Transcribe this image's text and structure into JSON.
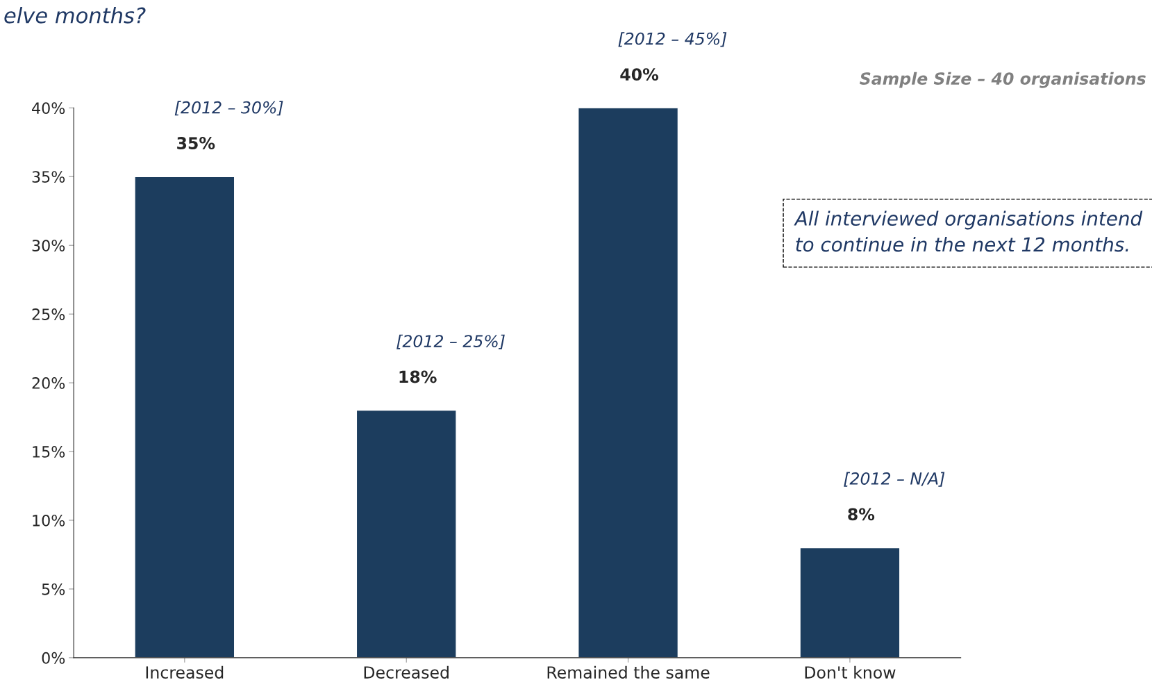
{
  "chart_data": {
    "type": "bar",
    "title": "elve months?",
    "categories": [
      "Increased",
      "Decreased",
      "Remained the same",
      "Don't know"
    ],
    "values": [
      35,
      18,
      40,
      8
    ],
    "value_labels": [
      "35%",
      "18%",
      "40%",
      "8%"
    ],
    "color": "#1c3d5e",
    "ylim": [
      0,
      40
    ],
    "yticks": [
      {
        "value": 0,
        "label": "0%"
      },
      {
        "value": 5,
        "label": "5%"
      },
      {
        "value": 10,
        "label": "10%"
      },
      {
        "value": 15,
        "label": "15%"
      },
      {
        "value": 20,
        "label": "20%"
      },
      {
        "value": 25,
        "label": "25%"
      },
      {
        "value": 30,
        "label": "30%"
      },
      {
        "value": 35,
        "label": "35%"
      },
      {
        "value": 40,
        "label": "40%"
      }
    ],
    "grid": false,
    "annotations": [
      "[2012 – 30%]",
      "[2012 – 25%]",
      "[2012 – 45%]",
      "[2012 – N/A]",
      "Sample Size – 40 organisations",
      "All interviewed organisations intend to continue in the next 12 months."
    ]
  }
}
